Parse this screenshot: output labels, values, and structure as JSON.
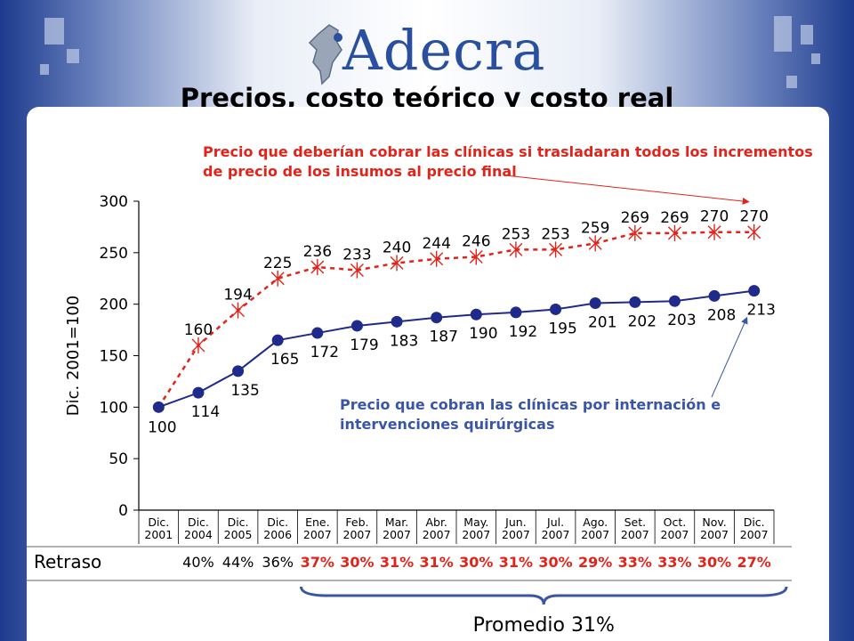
{
  "slide_title": "Precios, costo teórico y costo real",
  "logo_text": "Adecra",
  "annotations": {
    "theoretical_cost_note": [
      "Precio que deberían cobrar las clínicas si trasladaran todos los incrementos",
      "de precio de los insumos al precio final"
    ],
    "real_price_note": [
      "Precio que cobran las clínicas por  internación e",
      "intervenciones quirúrgicas"
    ]
  },
  "retraso": {
    "label": "Retraso",
    "values": [
      "40%",
      "44%",
      "36%",
      "37%",
      "30%",
      "31%",
      "31%",
      "30%",
      "31%",
      "30%",
      "29%",
      "33%",
      "33%",
      "30%",
      "27%"
    ],
    "black_count": 3,
    "average_label": "Promedio 31%"
  },
  "chart_data": {
    "type": "line",
    "ylabel": "Dic. 2001=100",
    "ylim": [
      0,
      300
    ],
    "yticks": [
      0,
      50,
      100,
      150,
      200,
      250,
      300
    ],
    "categories": [
      [
        "Dic.",
        "2001"
      ],
      [
        "Dic.",
        "2004"
      ],
      [
        "Dic.",
        "2005"
      ],
      [
        "Dic.",
        "2006"
      ],
      [
        "Ene.",
        "2007"
      ],
      [
        "Feb.",
        "2007"
      ],
      [
        "Mar.",
        "2007"
      ],
      [
        "Abr.",
        "2007"
      ],
      [
        "May.",
        "2007"
      ],
      [
        "Jun.",
        "2007"
      ],
      [
        "Jul.",
        "2007"
      ],
      [
        "Ago.",
        "2007"
      ],
      [
        "Set.",
        "2007"
      ],
      [
        "Oct.",
        "2007"
      ],
      [
        "Nov.",
        "2007"
      ],
      [
        "Dic.",
        "2007"
      ]
    ],
    "series": [
      {
        "values": [
          100,
          114,
          135,
          165,
          172,
          179,
          183,
          187,
          190,
          192,
          195,
          201,
          202,
          203,
          208,
          213
        ],
        "color": "#1f2a8a",
        "style": "solid-circle"
      },
      {
        "values": [
          null,
          160,
          194,
          225,
          236,
          233,
          240,
          244,
          246,
          253,
          253,
          259,
          269,
          269,
          270,
          270
        ],
        "color": "#e2231a",
        "style": "dashed-cross"
      }
    ]
  }
}
